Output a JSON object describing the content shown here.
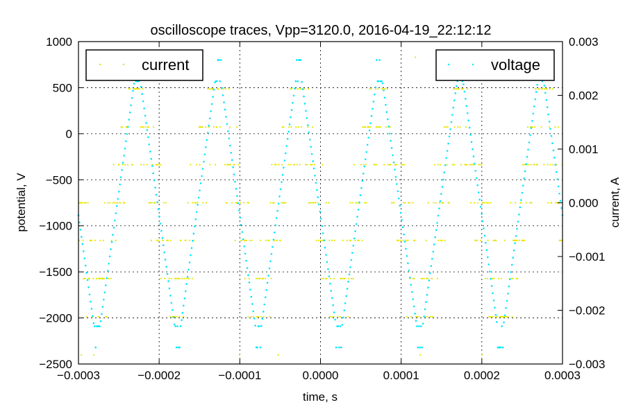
{
  "chart_data": {
    "type": "scatter",
    "title": "oscilloscope traces, Vpp=3120.0, 2016-04-19_22:12:12",
    "xlabel": "time, s",
    "ylabel": "potential, V",
    "y2label": "current, A",
    "xlim": [
      -0.0003,
      0.0003
    ],
    "ylim": [
      -2500,
      1000
    ],
    "y2lim": [
      -0.003,
      0.003
    ],
    "xticks": [
      "−0.0003",
      "−0.0002",
      "−0.0001",
      "0.0000",
      "0.0001",
      "0.0002",
      "0.0003"
    ],
    "yticks": [
      "−2500",
      "−2000",
      "−1500",
      "−1000",
      "−500",
      "0",
      "500",
      "1000"
    ],
    "y2ticks": [
      "−0.003",
      "−0.002",
      "−0.001",
      "0.000",
      "0.001",
      "0.002",
      "0.003"
    ],
    "grid": true,
    "series": [
      {
        "name": "current",
        "axis": "right",
        "color": "#e5e500",
        "legend_position": "upper-left",
        "levels": [
          0.00271,
          0.00212,
          0.00141,
          0.00071,
          0.0,
          -0.0007,
          -0.00141,
          -0.00212,
          -0.00283
        ],
        "period": 0.0001,
        "phase": -0.000277
      },
      {
        "name": "voltage",
        "axis": "left",
        "color": "#00e5ff",
        "legend_position": "upper-right",
        "min": -2320,
        "max": 800,
        "period": 0.0001,
        "phase_of_minimum": -0.000277
      }
    ]
  }
}
